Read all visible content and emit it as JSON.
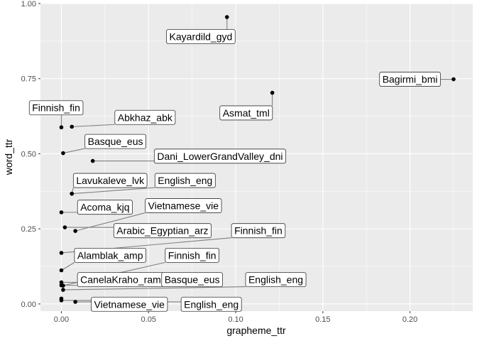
{
  "chart_data": {
    "type": "scatter",
    "title": "",
    "xlabel": "grapheme_ttr",
    "ylabel": "word_ttr",
    "xlim": [
      -0.012,
      0.236
    ],
    "ylim": [
      -0.024,
      1.0
    ],
    "xticks": [
      0.0,
      0.05,
      0.1,
      0.15,
      0.2
    ],
    "xtick_labels": [
      "0.00",
      "0.05",
      "0.10",
      "0.15",
      "0.20"
    ],
    "yticks": [
      0.0,
      0.25,
      0.5,
      0.75,
      1.0
    ],
    "ytick_labels": [
      "0.00",
      "0.25",
      "0.50",
      "0.75",
      "1.00"
    ],
    "grid": true,
    "legend": "none",
    "colors": {
      "panel": "#ebebeb",
      "grid": "#ffffff",
      "point": "#000000",
      "connector": "#808080",
      "label_fill": "#ffffff",
      "label_border": "#333333"
    },
    "points": [
      {
        "label": "Kayardild_gyd",
        "x": 0.095,
        "y": 0.955,
        "lx": 0.08,
        "ly": 0.89
      },
      {
        "label": "Bagirmi_bmi",
        "x": 0.225,
        "y": 0.748,
        "lx": 0.2,
        "ly": 0.748
      },
      {
        "label": "Asmat_tml",
        "x": 0.121,
        "y": 0.703,
        "lx": 0.106,
        "ly": 0.636
      },
      {
        "label": "Finnish_fin",
        "x": 0.0,
        "y": 0.588,
        "lx": -0.003,
        "ly": 0.653
      },
      {
        "label": "Abkhaz_abk",
        "x": 0.006,
        "y": 0.59,
        "lx": 0.048,
        "ly": 0.621
      },
      {
        "label": "Basque_eus",
        "x": 0.001,
        "y": 0.502,
        "lx": 0.031,
        "ly": 0.541
      },
      {
        "label": "Dani_LowerGrandValley_dni",
        "x": 0.018,
        "y": 0.476,
        "lx": 0.091,
        "ly": 0.492
      },
      {
        "label": "Lavukaleve_lvk",
        "x": 0.006,
        "y": 0.367,
        "lx": 0.028,
        "ly": 0.411
      },
      {
        "label": "English_eng",
        "x": 0.006,
        "y": 0.367,
        "lx": 0.071,
        "ly": 0.411
      },
      {
        "label": "Acoma_kjq",
        "x": 0.0,
        "y": 0.305,
        "lx": 0.025,
        "ly": 0.322
      },
      {
        "label": "Vietnamese_vie",
        "x": 0.008,
        "y": 0.243,
        "lx": 0.07,
        "ly": 0.327
      },
      {
        "label": "Arabic_Egyptian_arz",
        "x": 0.002,
        "y": 0.255,
        "lx": 0.058,
        "ly": 0.244
      },
      {
        "label": "Finnish_fin",
        "x": 0.0,
        "y": 0.17,
        "lx": 0.113,
        "ly": 0.244
      },
      {
        "label": "Alamblak_amp",
        "x": 0.0,
        "y": 0.112,
        "lx": 0.028,
        "ly": 0.162
      },
      {
        "label": "Finnish_fin",
        "x": 0.001,
        "y": 0.061,
        "lx": 0.075,
        "ly": 0.162
      },
      {
        "label": "CanelaKraho_ram",
        "x": 0.0,
        "y": 0.072,
        "lx": 0.034,
        "ly": 0.081
      },
      {
        "label": "Basque_eus",
        "x": 0.0,
        "y": 0.062,
        "lx": 0.075,
        "ly": 0.081
      },
      {
        "label": "English_eng",
        "x": 0.001,
        "y": 0.047,
        "lx": 0.123,
        "ly": 0.081
      },
      {
        "label": "Vietnamese_vie",
        "x": 0.0,
        "y": 0.012,
        "lx": 0.039,
        "ly": -0.001
      },
      {
        "label": "English_eng",
        "x": 0.008,
        "y": 0.007,
        "lx": 0.086,
        "ly": -0.001
      },
      {
        "label": "",
        "x": 0.0,
        "y": 0.018
      }
    ]
  }
}
